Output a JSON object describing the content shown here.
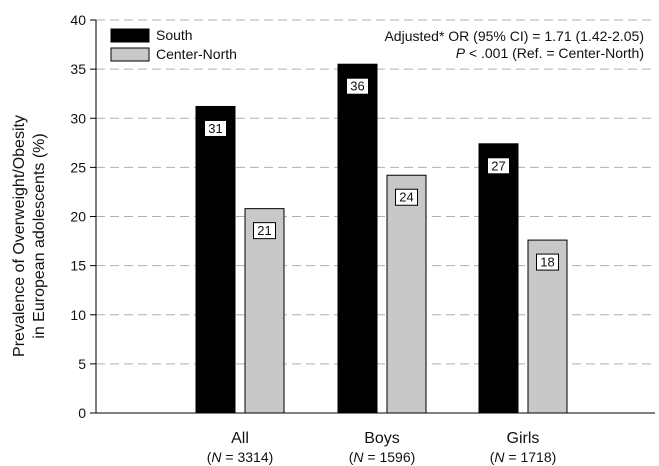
{
  "chart_data": {
    "type": "bar",
    "categories": [
      "All",
      "Boys",
      "Girls"
    ],
    "category_sublabels": [
      "(N = 3314)",
      "(N = 1596)",
      "(N = 1718)"
    ],
    "series": [
      {
        "name": "South",
        "values": [
          31.2,
          35.5,
          27.4
        ],
        "data_labels": [
          "31",
          "36",
          "27"
        ],
        "color": "#000000"
      },
      {
        "name": "Center-North",
        "values": [
          20.8,
          24.2,
          17.6
        ],
        "data_labels": [
          "21",
          "24",
          "18"
        ],
        "color": "#c8c8c8"
      }
    ],
    "ylabel_line1": "Prevalence of Overweight/Obesity",
    "ylabel_line2": "in European adolescents (%)",
    "ylim": [
      0,
      40
    ],
    "yticks": [
      0,
      5,
      10,
      15,
      20,
      25,
      30,
      35,
      40
    ],
    "grid": "horizontal dashed",
    "legend_position": "top-left",
    "annotation_line1": "Adjusted* OR (95% CI) = 1.71 (1.42-2.05)",
    "annotation_line2": "P < .001 (Ref. = Center-North)"
  }
}
